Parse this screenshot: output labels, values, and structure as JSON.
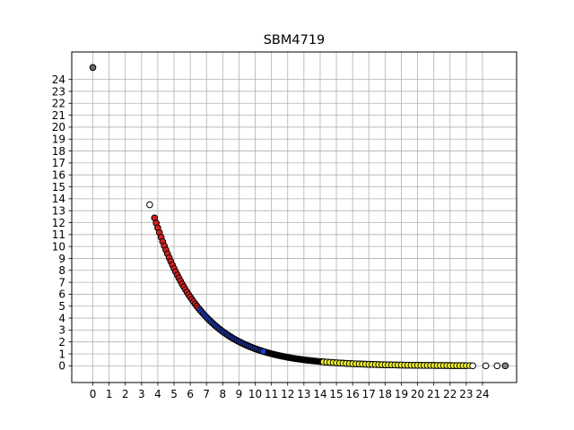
{
  "chart_data": {
    "type": "scatter",
    "title": "SBM4719",
    "xlabel": "",
    "ylabel": "",
    "xlim": [
      -1.3,
      26.1
    ],
    "ylim": [
      -1.4,
      26.3
    ],
    "x_ticks": [
      0,
      1,
      2,
      3,
      4,
      5,
      6,
      7,
      8,
      9,
      10,
      11,
      12,
      13,
      14,
      15,
      16,
      17,
      18,
      19,
      20,
      21,
      22,
      23,
      24
    ],
    "y_ticks": [
      0,
      1,
      2,
      3,
      4,
      5,
      6,
      7,
      8,
      9,
      10,
      11,
      12,
      13,
      14,
      15,
      16,
      17,
      18,
      19,
      20,
      21,
      22,
      23,
      24
    ],
    "grid": true,
    "legend": "none",
    "curve_model": "y = 46.5 * exp(-0.348 * x)",
    "series": [
      {
        "color": "#000000",
        "x_range": [
          3.8,
          23.0
        ],
        "step": 0.1
      },
      {
        "color": "#d62020",
        "x_range": [
          3.8,
          6.5
        ],
        "step": 0.1
      },
      {
        "color": "#1f3fd0",
        "x_range": [
          6.6,
          10.5
        ],
        "step": 0.1
      },
      {
        "color": "#f2f22a",
        "x_range": [
          14.2,
          23.2
        ],
        "step": 0.2
      }
    ],
    "open_points": [
      {
        "x": 0,
        "y": 25,
        "fill": "#666666"
      },
      {
        "x": 3.5,
        "y": 13.5,
        "fill": "#ffffff"
      },
      {
        "x": 23.4,
        "y": 0.0,
        "fill": "#ffffff"
      },
      {
        "x": 24.2,
        "y": 0.0,
        "fill": "#ffffff"
      },
      {
        "x": 24.9,
        "y": 0.0,
        "fill": "#ffffff"
      },
      {
        "x": 25.4,
        "y": 0.0,
        "fill": "#888888"
      }
    ]
  }
}
